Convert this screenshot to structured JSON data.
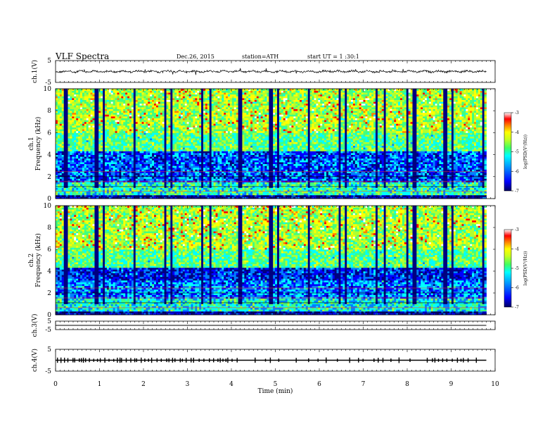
{
  "header": {
    "title": "VLF  Spectra",
    "date": "Dec.26,  2015",
    "station": "station=ATH",
    "start": "start  UT  =    1  :30:1"
  },
  "chart_data": [
    {
      "id": "ch1-waveform",
      "type": "line",
      "ylabel": "ch.1(V)",
      "ylim": [
        -5,
        5
      ],
      "y_ticks": [
        "5",
        "-5"
      ],
      "xlim": [
        0,
        10
      ],
      "x_unit": "min",
      "baseline_value": 0,
      "data_extent_min": 9.8,
      "note_series": "continuous noisy signal around 0 V with spikes",
      "series": [
        {
          "x": [
            0,
            1,
            2,
            3,
            4,
            5,
            6,
            7,
            8,
            9,
            9.8
          ],
          "y": [
            0,
            0.3,
            -0.2,
            0.2,
            -0.3,
            0.1,
            -0.1,
            0.2,
            0.0,
            -0.2,
            0.1
          ]
        }
      ]
    },
    {
      "id": "ch1-spectrogram",
      "type": "heatmap",
      "ylabel": "ch.1\nFrequency (kHz)",
      "ylabel_line1": "ch.1",
      "ylabel_line2": "Frequency (kHz)",
      "ylim": [
        0,
        10
      ],
      "y_ticks": [
        "0",
        "2",
        "4",
        "6",
        "8",
        "10"
      ],
      "xlim": [
        0,
        10
      ],
      "colorbar": {
        "label": "log(PSD(V²/Hz))",
        "ticks": [
          "-3",
          "-4",
          "-5",
          "-6",
          "-7"
        ],
        "range": [
          -7,
          -3
        ]
      }
    },
    {
      "id": "ch2-spectrogram",
      "type": "heatmap",
      "ylabel_line1": "ch.2",
      "ylabel_line2": "Frequency (kHz)",
      "ylim": [
        0,
        10
      ],
      "y_ticks": [
        "0",
        "2",
        "4",
        "6",
        "8",
        "10"
      ],
      "xlim": [
        0,
        10
      ],
      "colorbar": {
        "label": "log(PSD(V²/Hz))",
        "ticks": [
          "-3",
          "-4",
          "-5",
          "-6",
          "-7"
        ],
        "range": [
          -7,
          -3
        ]
      }
    },
    {
      "id": "ch3-waveform",
      "type": "line",
      "ylabel": "ch.3(V)",
      "ylim": [
        -5,
        5
      ],
      "y_ticks": [
        "5",
        "-5"
      ],
      "xlim": [
        0,
        10
      ],
      "series": [
        {
          "x": [
            0,
            9.8
          ],
          "y": [
            0,
            0
          ]
        }
      ]
    },
    {
      "id": "ch4-waveform",
      "type": "line",
      "ylabel": "ch.4(V)",
      "ylim": [
        -5,
        5
      ],
      "y_ticks": [
        "5",
        "-5"
      ],
      "xlim": [
        0,
        10
      ],
      "xlabel": "Time  (min)",
      "x_ticks": [
        "0",
        "1",
        "2",
        "3",
        "4",
        "5",
        "6",
        "7",
        "8",
        "9",
        "10"
      ],
      "series": [
        {
          "x": [
            0,
            9.8
          ],
          "y": [
            0,
            0
          ]
        }
      ]
    }
  ],
  "colors": {
    "axis": "#000000",
    "cmap": [
      "#000080",
      "#0000ff",
      "#0080ff",
      "#00ffff",
      "#40ff80",
      "#b0ff30",
      "#ffff00",
      "#ff8000",
      "#ff0000",
      "#ffffff"
    ]
  }
}
